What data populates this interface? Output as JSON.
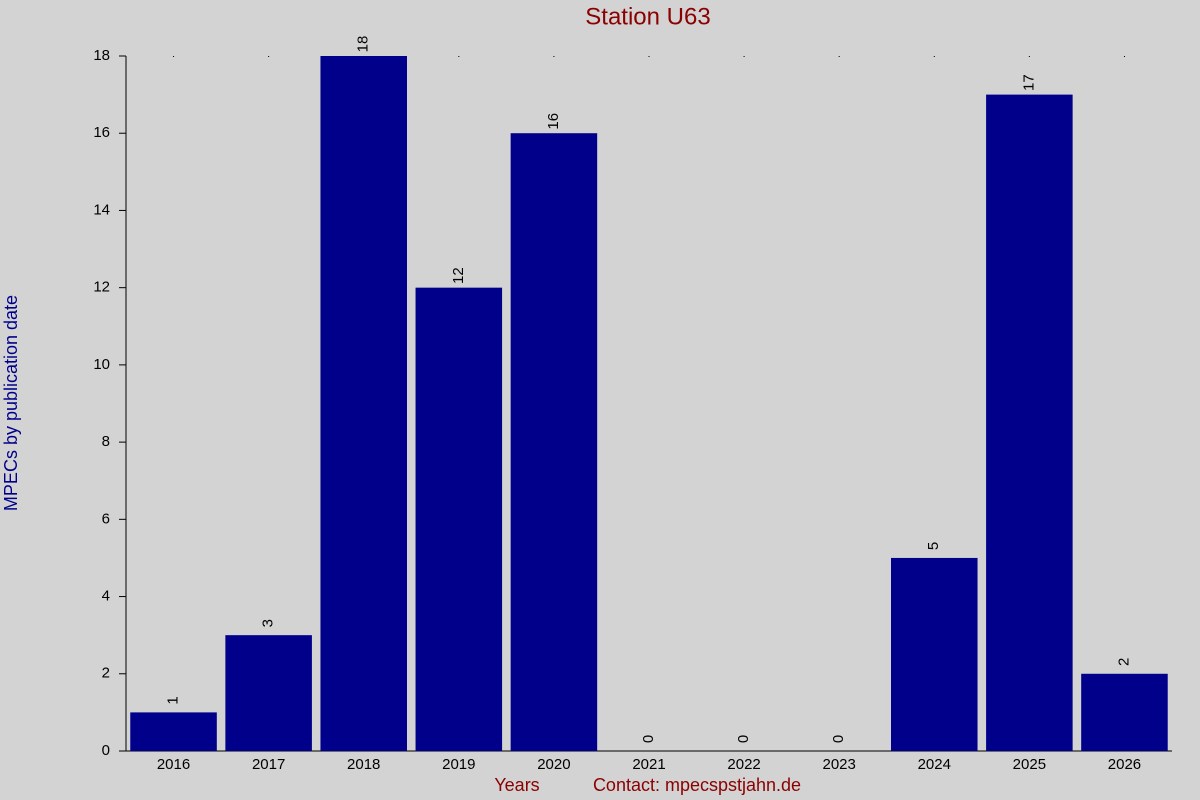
{
  "chart_data": {
    "type": "bar",
    "title": "Station U63",
    "x_label": "Years",
    "note": "Contact: mpecspstjahn.de",
    "y_label": "MPECs by publication date",
    "categories": [
      "2016",
      "2017",
      "2018",
      "2019",
      "2020",
      "2021",
      "2022",
      "2023",
      "2024",
      "2025",
      "2026"
    ],
    "values": [
      1,
      3,
      18,
      12,
      16,
      0,
      0,
      0,
      5,
      17,
      2
    ],
    "color": "#00008b",
    "ylim": [
      0,
      18
    ],
    "yticks": [
      0,
      2,
      4,
      6,
      8,
      10,
      12,
      14,
      16,
      18
    ],
    "grid": false
  }
}
